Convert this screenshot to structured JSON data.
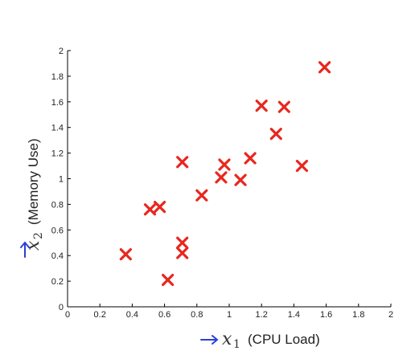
{
  "chart_data": {
    "type": "scatter",
    "title": "",
    "xlabel": {
      "var": "x",
      "sub": "1",
      "text": "(CPU Load)"
    },
    "ylabel": {
      "var": "x",
      "sub": "2",
      "text": "(Memory Use)"
    },
    "xlim": [
      0,
      2
    ],
    "ylim": [
      0,
      2
    ],
    "xticks": [
      0,
      0.2,
      0.4,
      0.6,
      0.8,
      1,
      1.2,
      1.4,
      1.6,
      1.8,
      2
    ],
    "yticks": [
      0,
      0.2,
      0.4,
      0.6,
      0.8,
      1,
      1.2,
      1.4,
      1.6,
      1.8,
      2
    ],
    "grid": false,
    "marker": "x",
    "marker_color": "#e8271e",
    "arrow_color": "#2a3fd6",
    "points": [
      {
        "x": 0.36,
        "y": 0.41
      },
      {
        "x": 0.51,
        "y": 0.76
      },
      {
        "x": 0.57,
        "y": 0.78
      },
      {
        "x": 0.62,
        "y": 0.21
      },
      {
        "x": 0.71,
        "y": 0.5
      },
      {
        "x": 0.71,
        "y": 0.42
      },
      {
        "x": 0.71,
        "y": 1.13
      },
      {
        "x": 0.83,
        "y": 0.87
      },
      {
        "x": 0.95,
        "y": 1.01
      },
      {
        "x": 0.97,
        "y": 1.11
      },
      {
        "x": 1.07,
        "y": 0.99
      },
      {
        "x": 1.13,
        "y": 1.16
      },
      {
        "x": 1.2,
        "y": 1.57
      },
      {
        "x": 1.29,
        "y": 1.35
      },
      {
        "x": 1.34,
        "y": 1.56
      },
      {
        "x": 1.45,
        "y": 1.1
      },
      {
        "x": 1.59,
        "y": 1.87
      }
    ]
  }
}
